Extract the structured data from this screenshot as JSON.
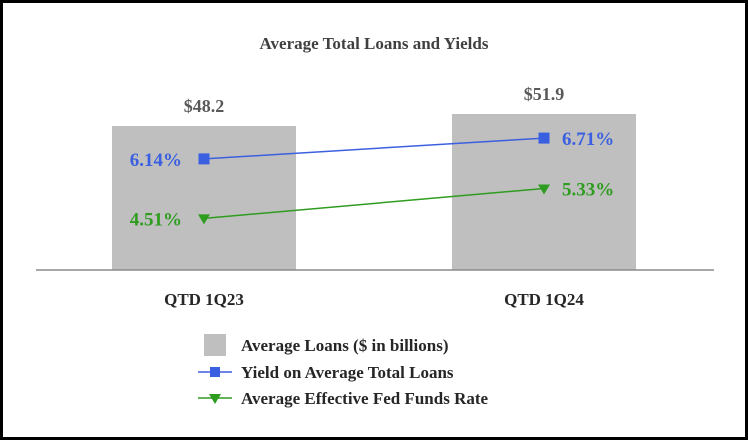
{
  "chart_data": {
    "type": "bar",
    "title": "Average Total Loans and Yields",
    "categories": [
      "QTD 1Q23",
      "QTD 1Q24"
    ],
    "bar_series": {
      "name": "Average Loans ($ in billions)",
      "values": [
        48.2,
        51.9
      ],
      "labels": [
        "$48.2",
        "$51.9"
      ],
      "color": "#bfbfbf"
    },
    "line_series": [
      {
        "name": "Yield on Average Total Loans",
        "values": [
          6.14,
          6.71
        ],
        "labels": [
          "6.14%",
          "6.71%"
        ],
        "color": "#3a5fe0",
        "marker": "square"
      },
      {
        "name": "Average Effective Fed Funds Rate",
        "values": [
          4.51,
          5.33
        ],
        "labels": [
          "4.51%",
          "5.33%"
        ],
        "color": "#2e9c1f",
        "marker": "triangle-down"
      }
    ],
    "bar_label_color": "#595959",
    "axis_label_color": "#262626"
  }
}
